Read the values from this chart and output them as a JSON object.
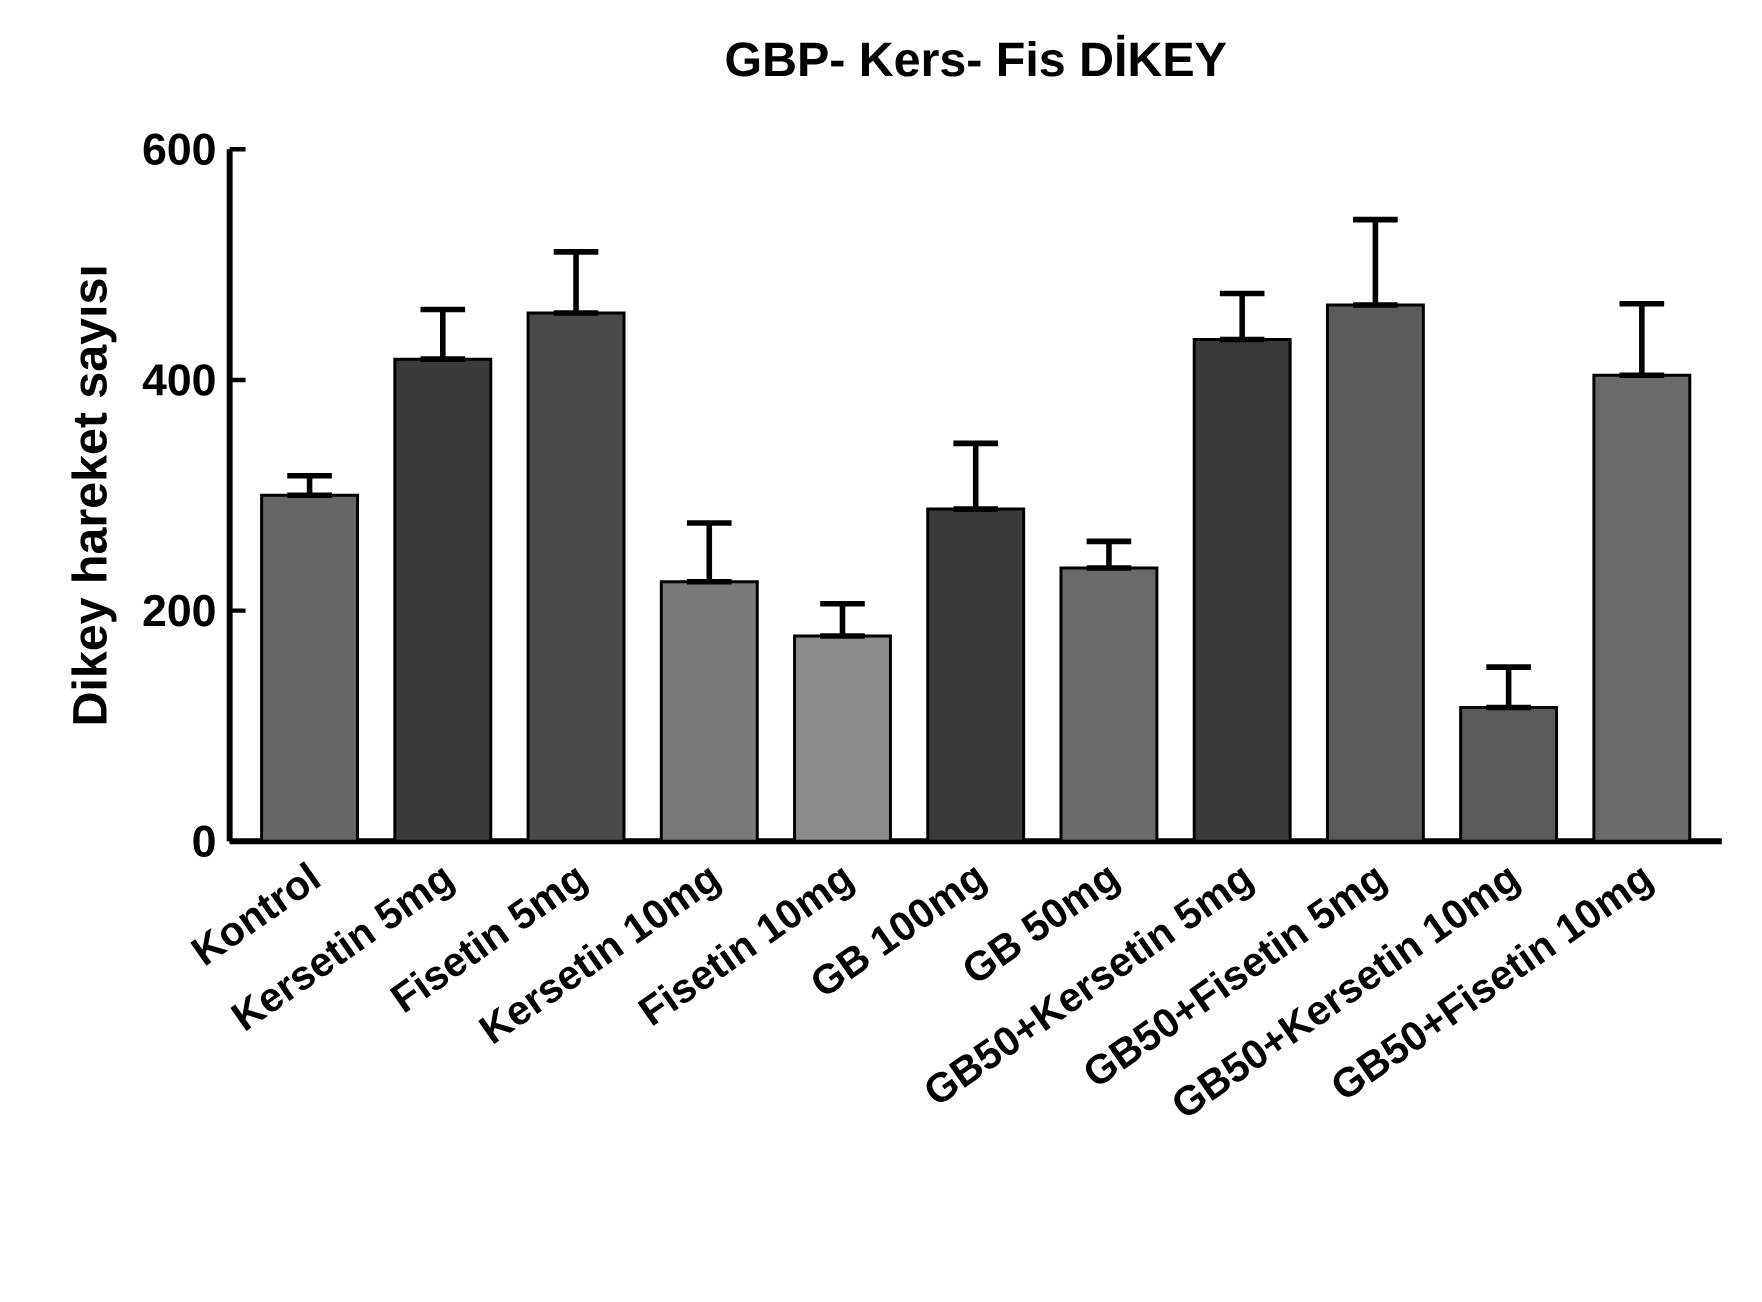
{
  "chart_data": {
    "type": "bar",
    "title": "GBP- Kers- Fis DİKEY",
    "ylabel": "Dikey hareket sayısı",
    "categories": [
      "Kontrol",
      "Kersetin 5mg",
      "Fisetin 5mg",
      "Kersetin 10mg",
      "Fisetin 10mg",
      "GB 100mg",
      "GB 50mg",
      "GB50+Kersetin 5mg",
      "GB50+Fisetin 5mg",
      "GB50+Kersetin 10mg",
      "GB50+Fisetin 10mg"
    ],
    "values": [
      300,
      418,
      458,
      225,
      178,
      288,
      237,
      435,
      465,
      116,
      404
    ],
    "errors": [
      [
        300,
        317
      ],
      [
        418,
        461
      ],
      [
        458,
        511
      ],
      [
        225,
        276
      ],
      [
        178,
        206
      ],
      [
        288,
        345
      ],
      [
        237,
        260
      ],
      [
        435,
        475
      ],
      [
        465,
        539
      ],
      [
        116,
        151
      ],
      [
        404,
        466
      ]
    ],
    "colors": [
      "#666666",
      "#3a3a3a",
      "#4a4a4a",
      "#7a7a7a",
      "#8a8a8a",
      "#3a3a3a",
      "#6a6a6a",
      "#3a3a3a",
      "#5a5a5a",
      "#5a5a5a",
      "#6a6a6a"
    ],
    "ylim": [
      0,
      600
    ],
    "yticks": [
      0,
      200,
      400,
      600
    ],
    "grid": false
  }
}
